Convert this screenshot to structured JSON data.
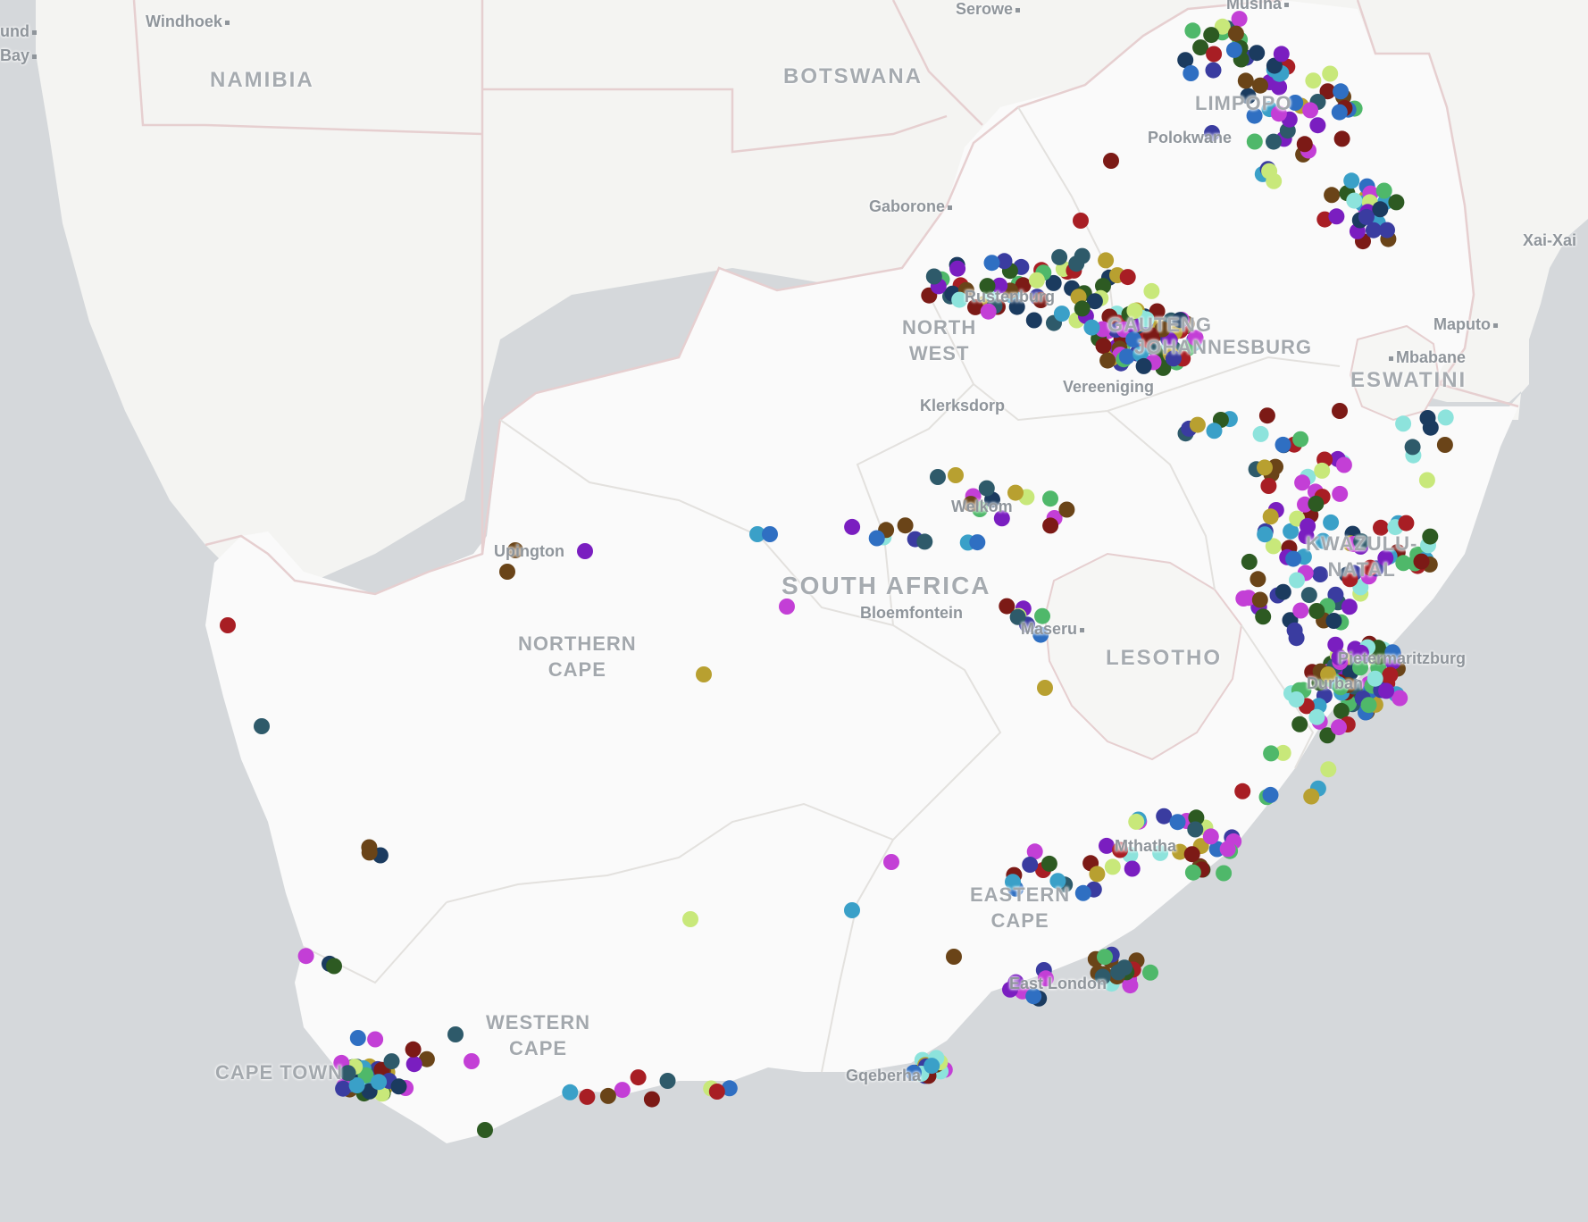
{
  "map": {
    "labels": {
      "countries": [
        {
          "id": "namibia",
          "text": "NAMIBIA"
        },
        {
          "id": "botswana",
          "text": "BOTSWANA"
        },
        {
          "id": "south-africa",
          "text": "SOUTH AFRICA"
        },
        {
          "id": "lesotho",
          "text": "LESOTHO"
        },
        {
          "id": "eswatini",
          "text": "ESWATINI"
        }
      ],
      "regions": [
        {
          "id": "limpopo",
          "text": "LIMPOPO"
        },
        {
          "id": "north-west",
          "text": "NORTH\nWEST"
        },
        {
          "id": "gauteng",
          "text": "GAUTENG"
        },
        {
          "id": "johannesburg",
          "text": "JOHANNESBURG"
        },
        {
          "id": "northern-cape",
          "text": "NORTHERN\nCAPE"
        },
        {
          "id": "kwazulu-natal",
          "text": "KWAZULU-\nNATAL"
        },
        {
          "id": "eastern-cape",
          "text": "EASTERN\nCAPE"
        },
        {
          "id": "western-cape",
          "text": "WESTERN\nCAPE"
        },
        {
          "id": "cape-town",
          "text": "CAPE TOWN"
        }
      ],
      "cities": [
        {
          "id": "windhoek",
          "text": "Windhoek"
        },
        {
          "id": "luderitz-und",
          "text": "und"
        },
        {
          "id": "walvis-bay",
          "text": "Bay"
        },
        {
          "id": "serowe",
          "text": "Serowe"
        },
        {
          "id": "musina",
          "text": "Musina"
        },
        {
          "id": "polokwane",
          "text": "Polokwane"
        },
        {
          "id": "gaborone",
          "text": "Gaborone"
        },
        {
          "id": "xai-xai",
          "text": "Xai-Xai"
        },
        {
          "id": "rustenburg",
          "text": "Rustenburg"
        },
        {
          "id": "maputo",
          "text": "Maputo"
        },
        {
          "id": "mbabane",
          "text": "Mbabane"
        },
        {
          "id": "klerksdorp",
          "text": "Klerksdorp"
        },
        {
          "id": "vereeniging",
          "text": "Vereeniging"
        },
        {
          "id": "welkom",
          "text": "Welkom"
        },
        {
          "id": "upington",
          "text": "Upington"
        },
        {
          "id": "bloemfontein",
          "text": "Bloemfontein"
        },
        {
          "id": "maseru",
          "text": "Maseru"
        },
        {
          "id": "pietermaritzburg",
          "text": "Pietermaritzburg"
        },
        {
          "id": "durban",
          "text": "Durban"
        },
        {
          "id": "mthatha",
          "text": "Mthatha"
        },
        {
          "id": "east-london",
          "text": "East London"
        },
        {
          "id": "gqeberha",
          "text": "Gqeberha"
        }
      ]
    },
    "colors": {
      "sea": "#d5d8db",
      "land": "#f6f6f4",
      "south_africa_land": "#fafafa",
      "country_border": "#e6cfd0",
      "province_border": "#e3e1de",
      "markers": [
        "#1b3b5f",
        "#2f6fc2",
        "#4fb86a",
        "#2d5a22",
        "#7a1ec0",
        "#a81e24",
        "#c8e87a",
        "#8de3dc",
        "#b8a030",
        "#6a4418",
        "#3a3ca0",
        "#2e5a6a",
        "#c33fd6",
        "#7c1a16",
        "#3aa0c8"
      ]
    },
    "marker_count": 620
  }
}
